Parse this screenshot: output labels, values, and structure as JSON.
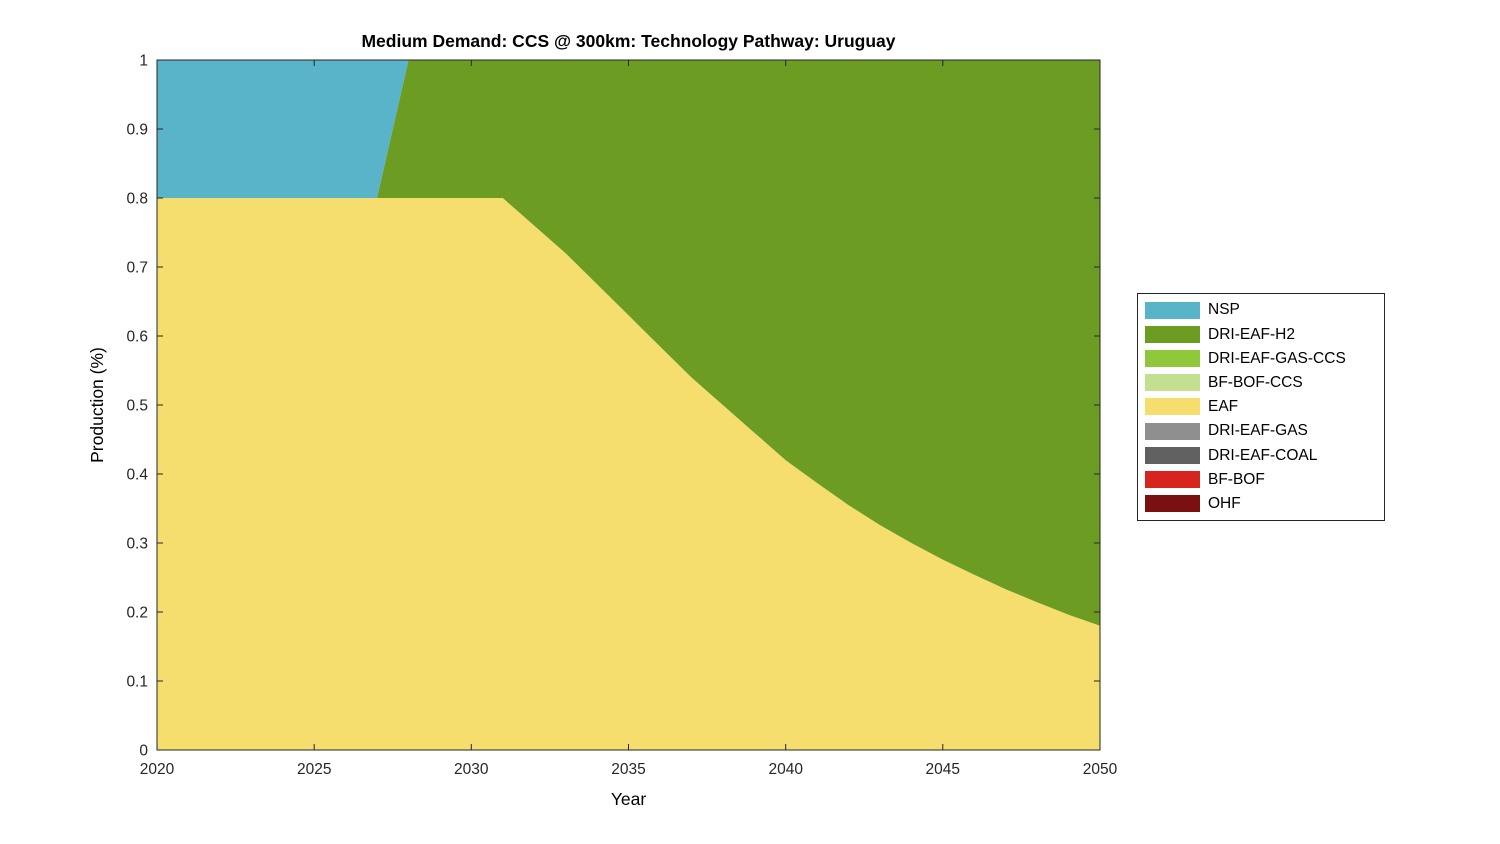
{
  "figure": {
    "background": "#ffffff",
    "axis_color": "#262626",
    "tick_label_color": "#262626"
  },
  "chart_data": {
    "type": "area",
    "stacked": true,
    "title": "Medium Demand: CCS @ 300km: Technology Pathway: Uruguay",
    "xlabel": "Year",
    "ylabel": "Production (%)",
    "xlim": [
      2020,
      2050
    ],
    "ylim": [
      0,
      1
    ],
    "xticks": [
      2020,
      2025,
      2030,
      2035,
      2040,
      2045,
      2050
    ],
    "yticks": [
      0,
      0.1,
      0.2,
      0.3,
      0.4,
      0.5,
      0.6,
      0.7,
      0.8,
      0.9,
      1
    ],
    "grid": false,
    "legend_position": "right-outside",
    "stack_note": "series listed legend order (top of stack first); stacking draws reversed array order bottom-to-top",
    "x": [
      2020,
      2021,
      2022,
      2023,
      2024,
      2025,
      2026,
      2027,
      2028,
      2029,
      2030,
      2031,
      2032,
      2033,
      2034,
      2035,
      2036,
      2037,
      2038,
      2039,
      2040,
      2041,
      2042,
      2043,
      2044,
      2045,
      2046,
      2047,
      2048,
      2049,
      2050
    ],
    "series": [
      {
        "name": "NSP",
        "color": "#59b3c9",
        "values": [
          0.2,
          0.2,
          0.2,
          0.2,
          0.2,
          0.2,
          0.2,
          0.2,
          0,
          0,
          0,
          0,
          0,
          0,
          0,
          0,
          0,
          0,
          0,
          0,
          0,
          0,
          0,
          0,
          0,
          0,
          0,
          0,
          0,
          0,
          0
        ]
      },
      {
        "name": "DRI-EAF-H2",
        "color": "#6d9c23",
        "values": [
          0,
          0,
          0,
          0,
          0,
          0,
          0,
          0,
          0.2,
          0.2,
          0.2,
          0.2,
          0.24,
          0.28,
          0.325,
          0.37,
          0.415,
          0.46,
          0.5,
          0.54,
          0.58,
          0.613,
          0.645,
          0.674,
          0.7,
          0.724,
          0.746,
          0.767,
          0.786,
          0.804,
          0.82
        ]
      },
      {
        "name": "DRI-EAF-GAS-CCS",
        "color": "#90c83c",
        "values": [
          0,
          0,
          0,
          0,
          0,
          0,
          0,
          0,
          0,
          0,
          0,
          0,
          0,
          0,
          0,
          0,
          0,
          0,
          0,
          0,
          0,
          0,
          0,
          0,
          0,
          0,
          0,
          0,
          0,
          0,
          0
        ]
      },
      {
        "name": "BF-BOF-CCS",
        "color": "#c3df92",
        "values": [
          0,
          0,
          0,
          0,
          0,
          0,
          0,
          0,
          0,
          0,
          0,
          0,
          0,
          0,
          0,
          0,
          0,
          0,
          0,
          0,
          0,
          0,
          0,
          0,
          0,
          0,
          0,
          0,
          0,
          0,
          0
        ]
      },
      {
        "name": "EAF",
        "color": "#f5dd6e",
        "values": [
          0.8,
          0.8,
          0.8,
          0.8,
          0.8,
          0.8,
          0.8,
          0.8,
          0.8,
          0.8,
          0.8,
          0.8,
          0.76,
          0.72,
          0.675,
          0.63,
          0.585,
          0.54,
          0.5,
          0.46,
          0.42,
          0.387,
          0.355,
          0.326,
          0.3,
          0.276,
          0.254,
          0.233,
          0.214,
          0.196,
          0.18
        ]
      },
      {
        "name": "DRI-EAF-GAS",
        "color": "#8f8f8f",
        "values": [
          0,
          0,
          0,
          0,
          0,
          0,
          0,
          0,
          0,
          0,
          0,
          0,
          0,
          0,
          0,
          0,
          0,
          0,
          0,
          0,
          0,
          0,
          0,
          0,
          0,
          0,
          0,
          0,
          0,
          0,
          0
        ]
      },
      {
        "name": "DRI-EAF-COAL",
        "color": "#606060",
        "values": [
          0,
          0,
          0,
          0,
          0,
          0,
          0,
          0,
          0,
          0,
          0,
          0,
          0,
          0,
          0,
          0,
          0,
          0,
          0,
          0,
          0,
          0,
          0,
          0,
          0,
          0,
          0,
          0,
          0,
          0,
          0
        ]
      },
      {
        "name": "BF-BOF",
        "color": "#d8241f",
        "values": [
          0,
          0,
          0,
          0,
          0,
          0,
          0,
          0,
          0,
          0,
          0,
          0,
          0,
          0,
          0,
          0,
          0,
          0,
          0,
          0,
          0,
          0,
          0,
          0,
          0,
          0,
          0,
          0,
          0,
          0,
          0
        ]
      },
      {
        "name": "OHF",
        "color": "#7a1010",
        "values": [
          0,
          0,
          0,
          0,
          0,
          0,
          0,
          0,
          0,
          0,
          0,
          0,
          0,
          0,
          0,
          0,
          0,
          0,
          0,
          0,
          0,
          0,
          0,
          0,
          0,
          0,
          0,
          0,
          0,
          0,
          0
        ]
      }
    ]
  }
}
